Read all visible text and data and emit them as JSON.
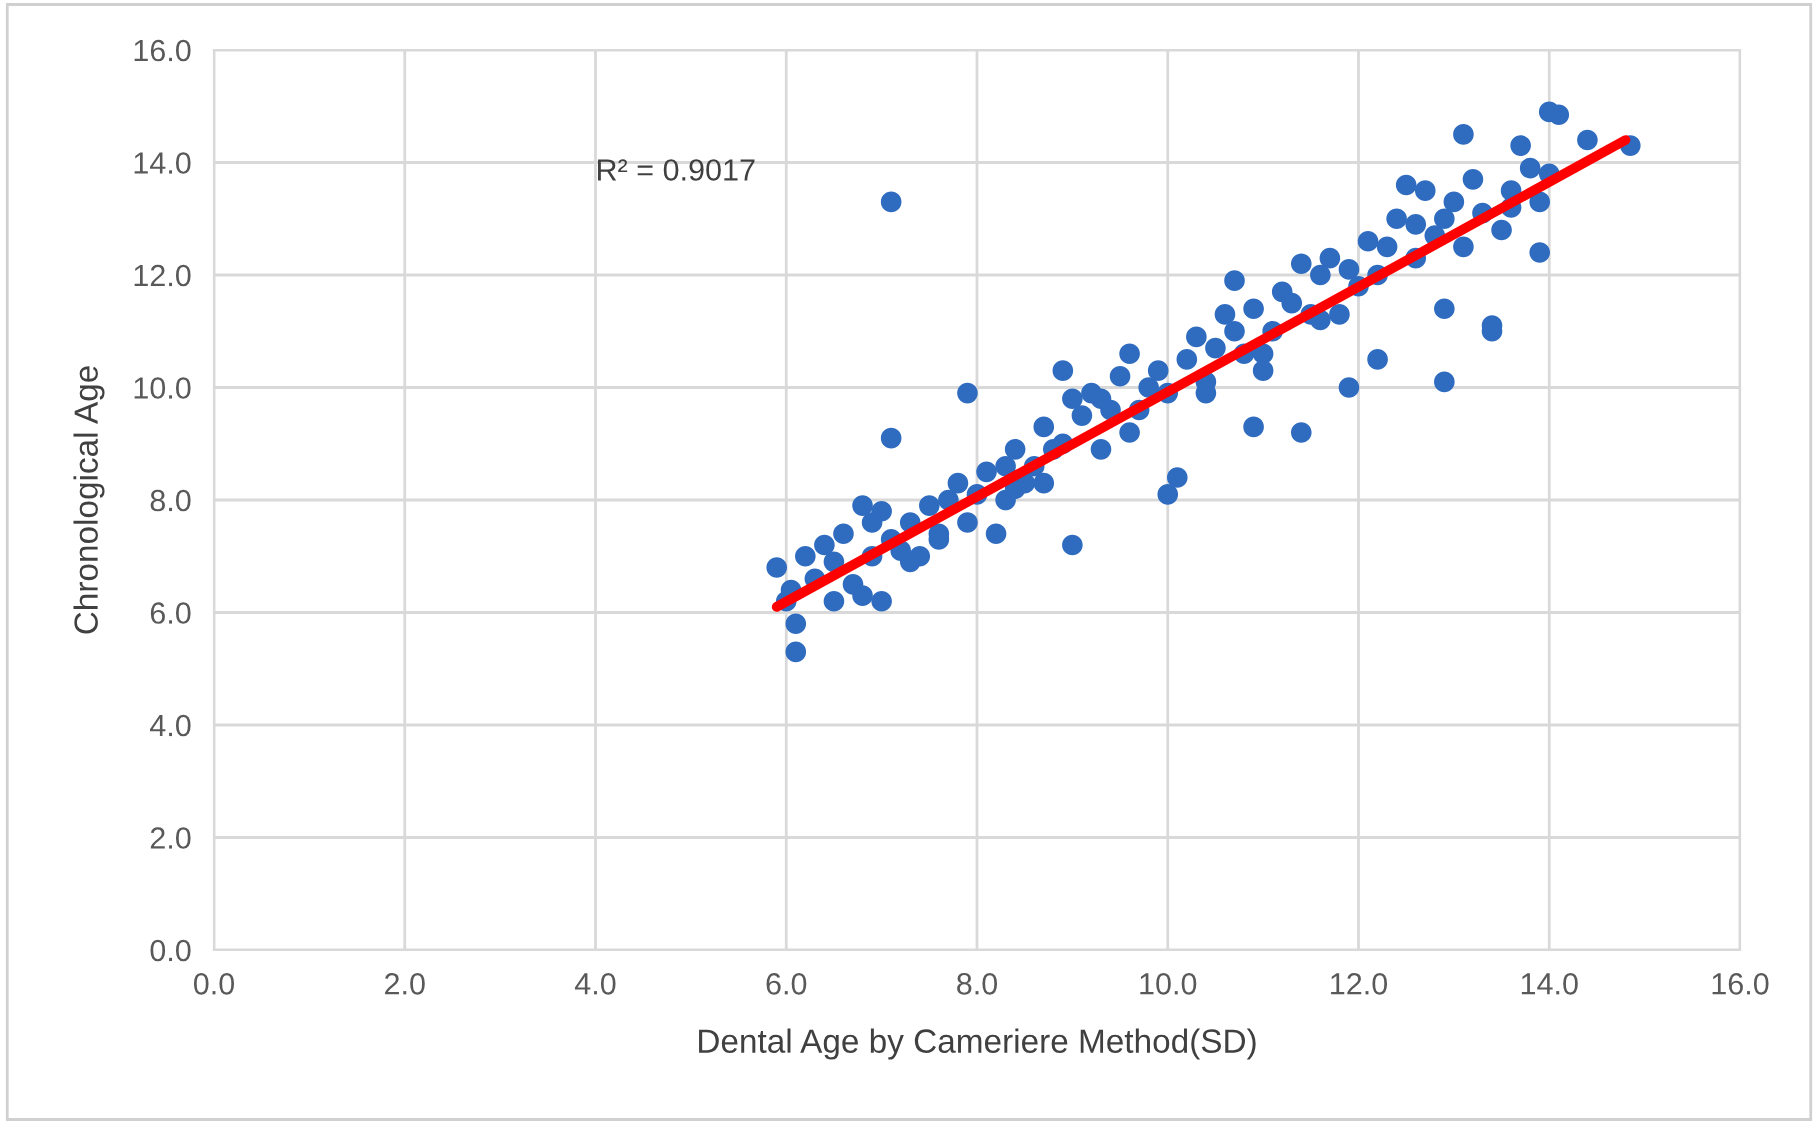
{
  "chart_data": {
    "type": "scatter",
    "xlabel": "Dental Age by Cameriere Method(SD)",
    "ylabel": "Chronological Age",
    "annotations": [
      "R² = 0.9017"
    ],
    "xlim": [
      0,
      16
    ],
    "ylim": [
      0,
      16
    ],
    "xticks": [
      {
        "value": 0,
        "label": "0.0"
      },
      {
        "value": 2,
        "label": "2.0"
      },
      {
        "value": 4,
        "label": "4.0"
      },
      {
        "value": 6,
        "label": "6.0"
      },
      {
        "value": 8,
        "label": "8.0"
      },
      {
        "value": 10,
        "label": "10.0"
      },
      {
        "value": 12,
        "label": "12.0"
      },
      {
        "value": 14,
        "label": "14.0"
      },
      {
        "value": 16,
        "label": "16.0"
      }
    ],
    "yticks": [
      {
        "value": 0,
        "label": "0.0"
      },
      {
        "value": 2,
        "label": "2.0"
      },
      {
        "value": 4,
        "label": "4.0"
      },
      {
        "value": 6,
        "label": "6.0"
      },
      {
        "value": 8,
        "label": "8.0"
      },
      {
        "value": 10,
        "label": "10.0"
      },
      {
        "value": 12,
        "label": "12.0"
      },
      {
        "value": 14,
        "label": "14.0"
      },
      {
        "value": 16,
        "label": "16.0"
      }
    ],
    "grid": true,
    "marker": "circle",
    "series": [
      {
        "color": "#2f6cc0",
        "x": [
          5.9,
          6.0,
          6.05,
          6.1,
          6.1,
          6.2,
          6.3,
          6.4,
          6.5,
          6.6,
          6.7,
          6.8,
          6.8,
          6.9,
          7.0,
          7.0,
          7.1,
          7.1,
          7.1,
          7.2,
          7.3,
          7.4,
          7.5,
          7.6,
          7.7,
          7.8,
          7.9,
          7.9,
          8.0,
          8.1,
          8.2,
          8.3,
          8.3,
          8.4,
          8.5,
          8.6,
          8.7,
          8.8,
          8.9,
          8.9,
          9.0,
          9.0,
          9.1,
          9.2,
          9.3,
          9.4,
          9.5,
          9.6,
          9.7,
          9.8,
          9.9,
          10.0,
          10.0,
          10.1,
          10.2,
          10.3,
          10.4,
          10.5,
          10.6,
          10.7,
          10.8,
          10.9,
          10.9,
          11.0,
          11.1,
          11.2,
          11.3,
          11.4,
          11.4,
          11.5,
          11.6,
          11.7,
          11.8,
          11.9,
          11.9,
          12.0,
          12.1,
          12.2,
          12.2,
          12.3,
          12.4,
          12.5,
          12.6,
          12.7,
          12.8,
          12.9,
          12.9,
          12.9,
          13.0,
          13.1,
          13.1,
          13.2,
          13.3,
          13.4,
          13.4,
          13.5,
          13.6,
          13.7,
          13.8,
          13.9,
          13.9,
          14.0,
          14.0,
          14.1,
          14.4,
          14.85,
          6.5,
          7.6,
          8.4,
          9.6,
          10.4,
          11.0,
          12.6,
          13.6,
          6.9,
          7.3,
          8.7,
          9.3,
          10.7,
          11.6
        ],
        "values": [
          6.8,
          6.2,
          6.4,
          5.3,
          5.8,
          7.0,
          6.6,
          7.2,
          6.2,
          7.4,
          6.5,
          7.9,
          6.3,
          7.0,
          6.2,
          7.8,
          13.3,
          9.1,
          7.3,
          7.1,
          7.6,
          7.0,
          7.9,
          7.3,
          8.0,
          8.3,
          9.9,
          7.6,
          8.1,
          8.5,
          7.4,
          8.6,
          8.0,
          8.9,
          8.3,
          8.6,
          9.3,
          8.9,
          10.3,
          9.0,
          7.2,
          9.8,
          9.5,
          9.9,
          8.9,
          9.6,
          10.2,
          10.6,
          9.6,
          10.0,
          10.3,
          8.1,
          9.9,
          8.4,
          10.5,
          10.9,
          10.1,
          10.7,
          11.3,
          11.9,
          10.6,
          9.3,
          11.4,
          10.3,
          11.0,
          11.7,
          11.5,
          9.2,
          12.2,
          11.3,
          12.0,
          12.3,
          11.3,
          10.0,
          12.1,
          11.8,
          12.6,
          10.5,
          12.0,
          12.5,
          13.0,
          13.6,
          12.3,
          13.5,
          12.7,
          10.1,
          11.4,
          13.0,
          13.3,
          14.5,
          12.5,
          13.7,
          13.1,
          11.1,
          11.0,
          12.8,
          13.5,
          14.3,
          13.9,
          12.4,
          13.3,
          14.9,
          13.8,
          14.85,
          14.4,
          14.3,
          6.9,
          7.4,
          8.2,
          9.2,
          9.9,
          10.6,
          12.9,
          13.2,
          7.6,
          6.9,
          8.3,
          9.8,
          11.0,
          11.2
        ]
      },
      {
        "type": "line",
        "marker": "none",
        "color": "#ff0000",
        "x": [
          5.9,
          14.8
        ],
        "values": [
          6.1,
          14.4
        ]
      }
    ]
  }
}
